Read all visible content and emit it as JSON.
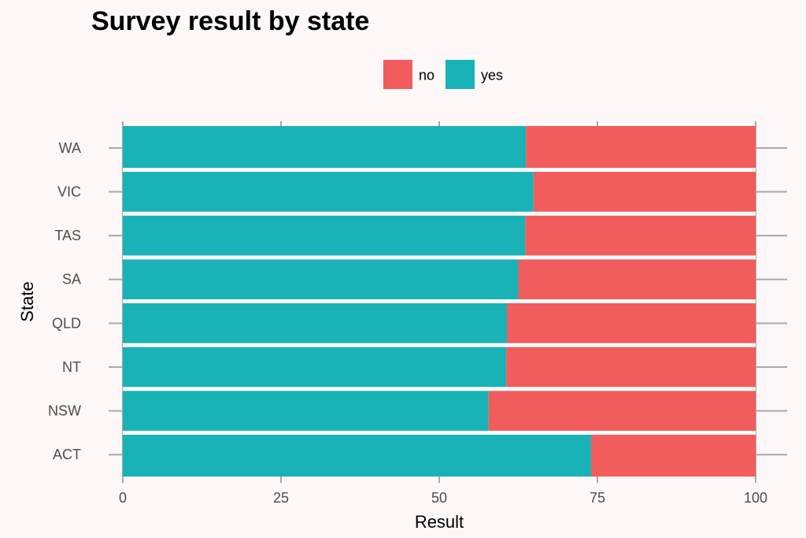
{
  "chart_data": {
    "type": "bar",
    "orientation": "horizontal",
    "stacked": true,
    "title": "Survey result by state",
    "xlabel": "Result",
    "ylabel": "State",
    "categories": [
      "ACT",
      "NSW",
      "NT",
      "QLD",
      "SA",
      "TAS",
      "VIC",
      "WA"
    ],
    "series": [
      {
        "name": "yes",
        "color": "#19b2b7",
        "values": [
          74.0,
          57.8,
          60.6,
          60.7,
          62.5,
          63.6,
          64.9,
          63.7
        ]
      },
      {
        "name": "no",
        "color": "#f15d5c",
        "values": [
          26.0,
          42.2,
          39.4,
          39.3,
          37.5,
          36.4,
          35.1,
          36.3
        ]
      }
    ],
    "xlim": [
      0,
      100
    ],
    "xticks": [
      "0",
      "25",
      "50",
      "75",
      "100"
    ],
    "legend_order": [
      "no",
      "yes"
    ],
    "legend_position": "top",
    "grid": true,
    "grid_color": "#a9a9a9",
    "background": "#fdf7f7",
    "category_separator_color": "#ffffff"
  }
}
